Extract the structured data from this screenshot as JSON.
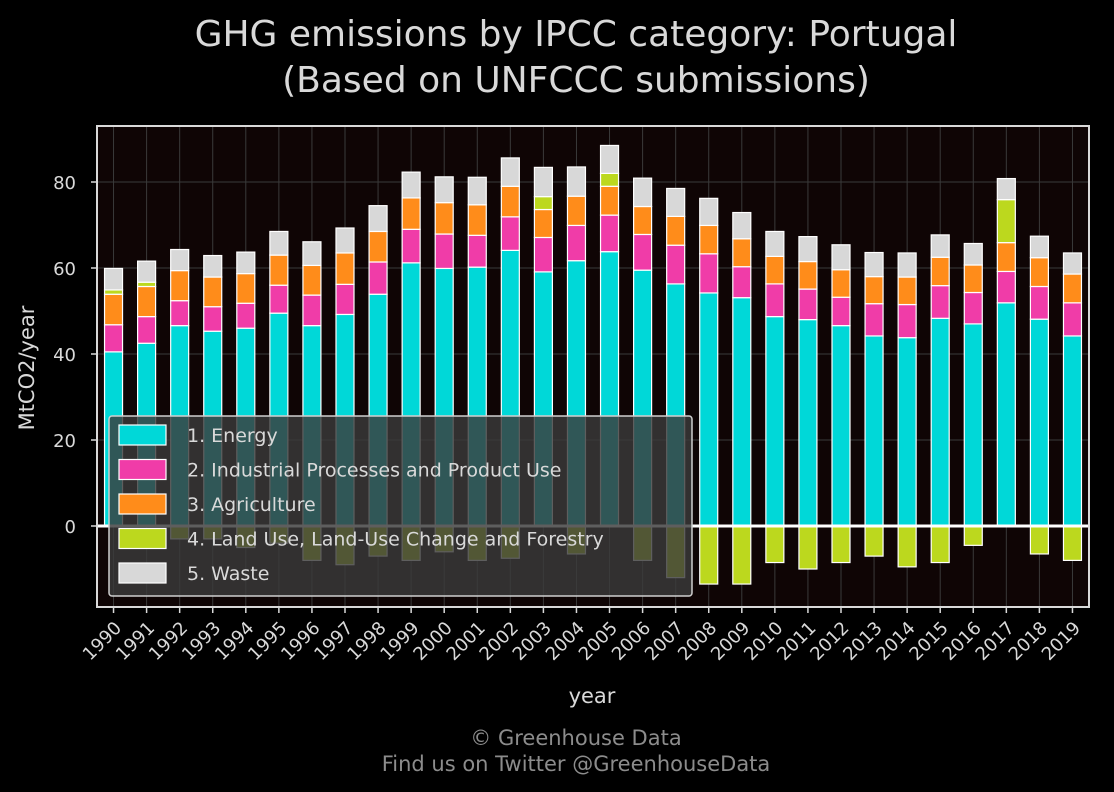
{
  "chart_data": {
    "type": "bar",
    "stacked": true,
    "title": "GHG emissions by IPCC category: Portugal",
    "subtitle": "(Based on UNFCCC submissions)",
    "xlabel": "year",
    "ylabel": "MtCO2/year",
    "ylim": [
      -19,
      93
    ],
    "yticks": [
      0,
      20,
      40,
      60,
      80
    ],
    "grid": true,
    "legend_position": "lower-left",
    "categories": [
      "1990",
      "1991",
      "1992",
      "1993",
      "1994",
      "1995",
      "1996",
      "1997",
      "1998",
      "1999",
      "2000",
      "2001",
      "2002",
      "2003",
      "2004",
      "2005",
      "2006",
      "2007",
      "2008",
      "2009",
      "2010",
      "2011",
      "2012",
      "2013",
      "2014",
      "2015",
      "2016",
      "2017",
      "2018",
      "2019"
    ],
    "series": [
      {
        "name": "1. Energy",
        "color": "#00d8d8",
        "values": [
          40.5,
          42.5,
          46.6,
          45.3,
          46.0,
          49.5,
          46.6,
          49.2,
          53.9,
          61.2,
          59.9,
          60.2,
          64.1,
          59.1,
          61.7,
          63.8,
          59.5,
          56.3,
          54.2,
          53.1,
          48.7,
          48.0,
          46.6,
          44.2,
          43.8,
          48.3,
          47.0,
          51.9,
          48.1,
          44.2
        ]
      },
      {
        "name": "2. Industrial Processes and Product Use",
        "color": "#f03ca8",
        "values": [
          6.3,
          6.2,
          5.8,
          5.7,
          5.8,
          6.5,
          7.1,
          7.0,
          7.5,
          7.8,
          8.0,
          7.4,
          7.8,
          8.0,
          8.2,
          8.5,
          8.3,
          9.0,
          9.1,
          7.2,
          7.6,
          7.1,
          6.6,
          7.5,
          7.7,
          7.6,
          7.3,
          7.3,
          7.6,
          7.7
        ]
      },
      {
        "name": "3. Agriculture",
        "color": "#ff8c1a",
        "values": [
          7.1,
          7.0,
          7.0,
          6.9,
          6.9,
          7.0,
          6.9,
          7.3,
          7.1,
          7.3,
          7.3,
          7.1,
          7.1,
          6.5,
          6.8,
          6.7,
          6.5,
          6.7,
          6.6,
          6.5,
          6.4,
          6.4,
          6.4,
          6.3,
          6.4,
          6.6,
          6.4,
          6.7,
          6.7,
          6.7
        ]
      },
      {
        "name": "4. Land Use, Land-Use Change and Forestry",
        "color": "#bcd81e",
        "values": [
          1.0,
          1.0,
          -3.0,
          -3.0,
          -5.0,
          -4.0,
          -8.0,
          -9.0,
          -7.0,
          -8.0,
          -6.0,
          -8.0,
          -7.5,
          3.0,
          -6.5,
          3.0,
          -8.0,
          -12.0,
          -13.5,
          -13.5,
          -8.5,
          -10.0,
          -8.5,
          -7.0,
          -9.5,
          -8.5,
          -4.5,
          10.0,
          -6.5,
          -8.0
        ]
      },
      {
        "name": "5. Waste",
        "color": "#d8d8d8",
        "values": [
          5.0,
          4.9,
          4.9,
          5.0,
          5.0,
          5.5,
          5.5,
          5.8,
          6.0,
          6.0,
          6.0,
          6.4,
          6.6,
          6.8,
          6.8,
          6.5,
          6.6,
          6.5,
          6.3,
          6.1,
          5.8,
          5.8,
          5.8,
          5.6,
          5.6,
          5.2,
          5.0,
          4.9,
          5.0,
          4.9
        ]
      }
    ]
  },
  "credit_line1": "© Greenhouse Data",
  "credit_line2": "Find us on Twitter @GreenhouseData"
}
